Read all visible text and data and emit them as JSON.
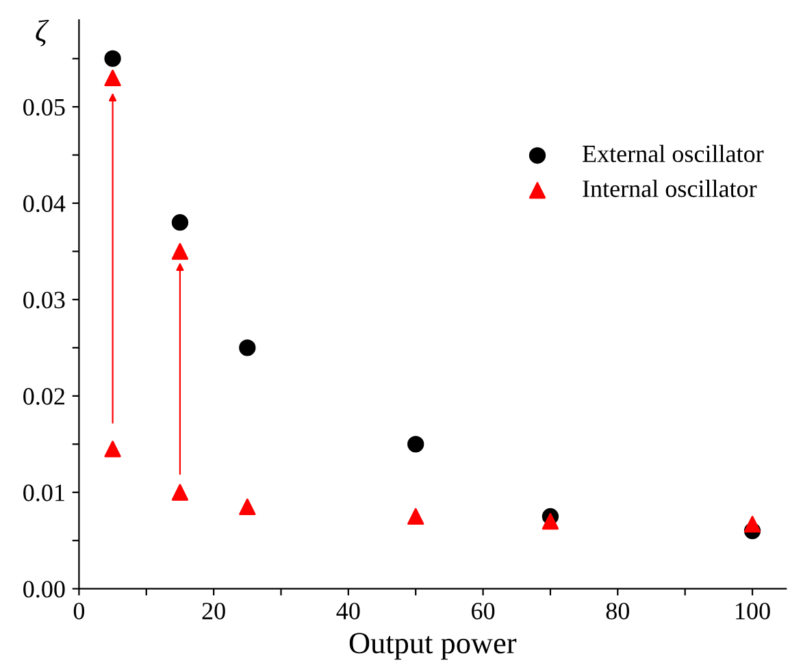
{
  "chart_data": {
    "type": "scatter",
    "xlabel": "Output power",
    "ylabel": "ζ",
    "series": [
      {
        "name": "External oscillator",
        "color": "#000000",
        "marker": "circle",
        "x": [
          5,
          15,
          25,
          50,
          70,
          100
        ],
        "values": [
          0.055,
          0.038,
          0.025,
          0.015,
          0.0075,
          0.006
        ]
      },
      {
        "name": "Internal oscillator",
        "color": "#ff0000",
        "marker": "triangle",
        "x": [
          5,
          5,
          15,
          15,
          25,
          50,
          70,
          100
        ],
        "values": [
          0.053,
          0.0145,
          0.035,
          0.01,
          0.0085,
          0.0075,
          0.007,
          0.0067
        ]
      }
    ],
    "xlim": [
      0,
      105
    ],
    "ylim": [
      0,
      0.059
    ],
    "xticks": [
      0,
      {
        "value": 10,
        "label": null
      },
      20,
      {
        "value": 30,
        "label": null
      },
      40,
      {
        "value": 50,
        "label": null
      },
      60,
      {
        "value": 70,
        "label": null
      },
      80,
      {
        "value": 90,
        "label": null
      },
      100
    ],
    "yticks": [
      {
        "value": 0,
        "label": "0.00"
      },
      {
        "value": 0.005,
        "label": null
      },
      0.01,
      {
        "value": 0.015,
        "label": null
      },
      0.02,
      {
        "value": 0.025,
        "label": null
      },
      0.03,
      {
        "value": 0.035,
        "label": null
      },
      0.04,
      {
        "value": 0.045,
        "label": null
      },
      0.05,
      {
        "value": 0.055,
        "label": null
      }
    ],
    "grid": false,
    "legend": "top right"
  }
}
